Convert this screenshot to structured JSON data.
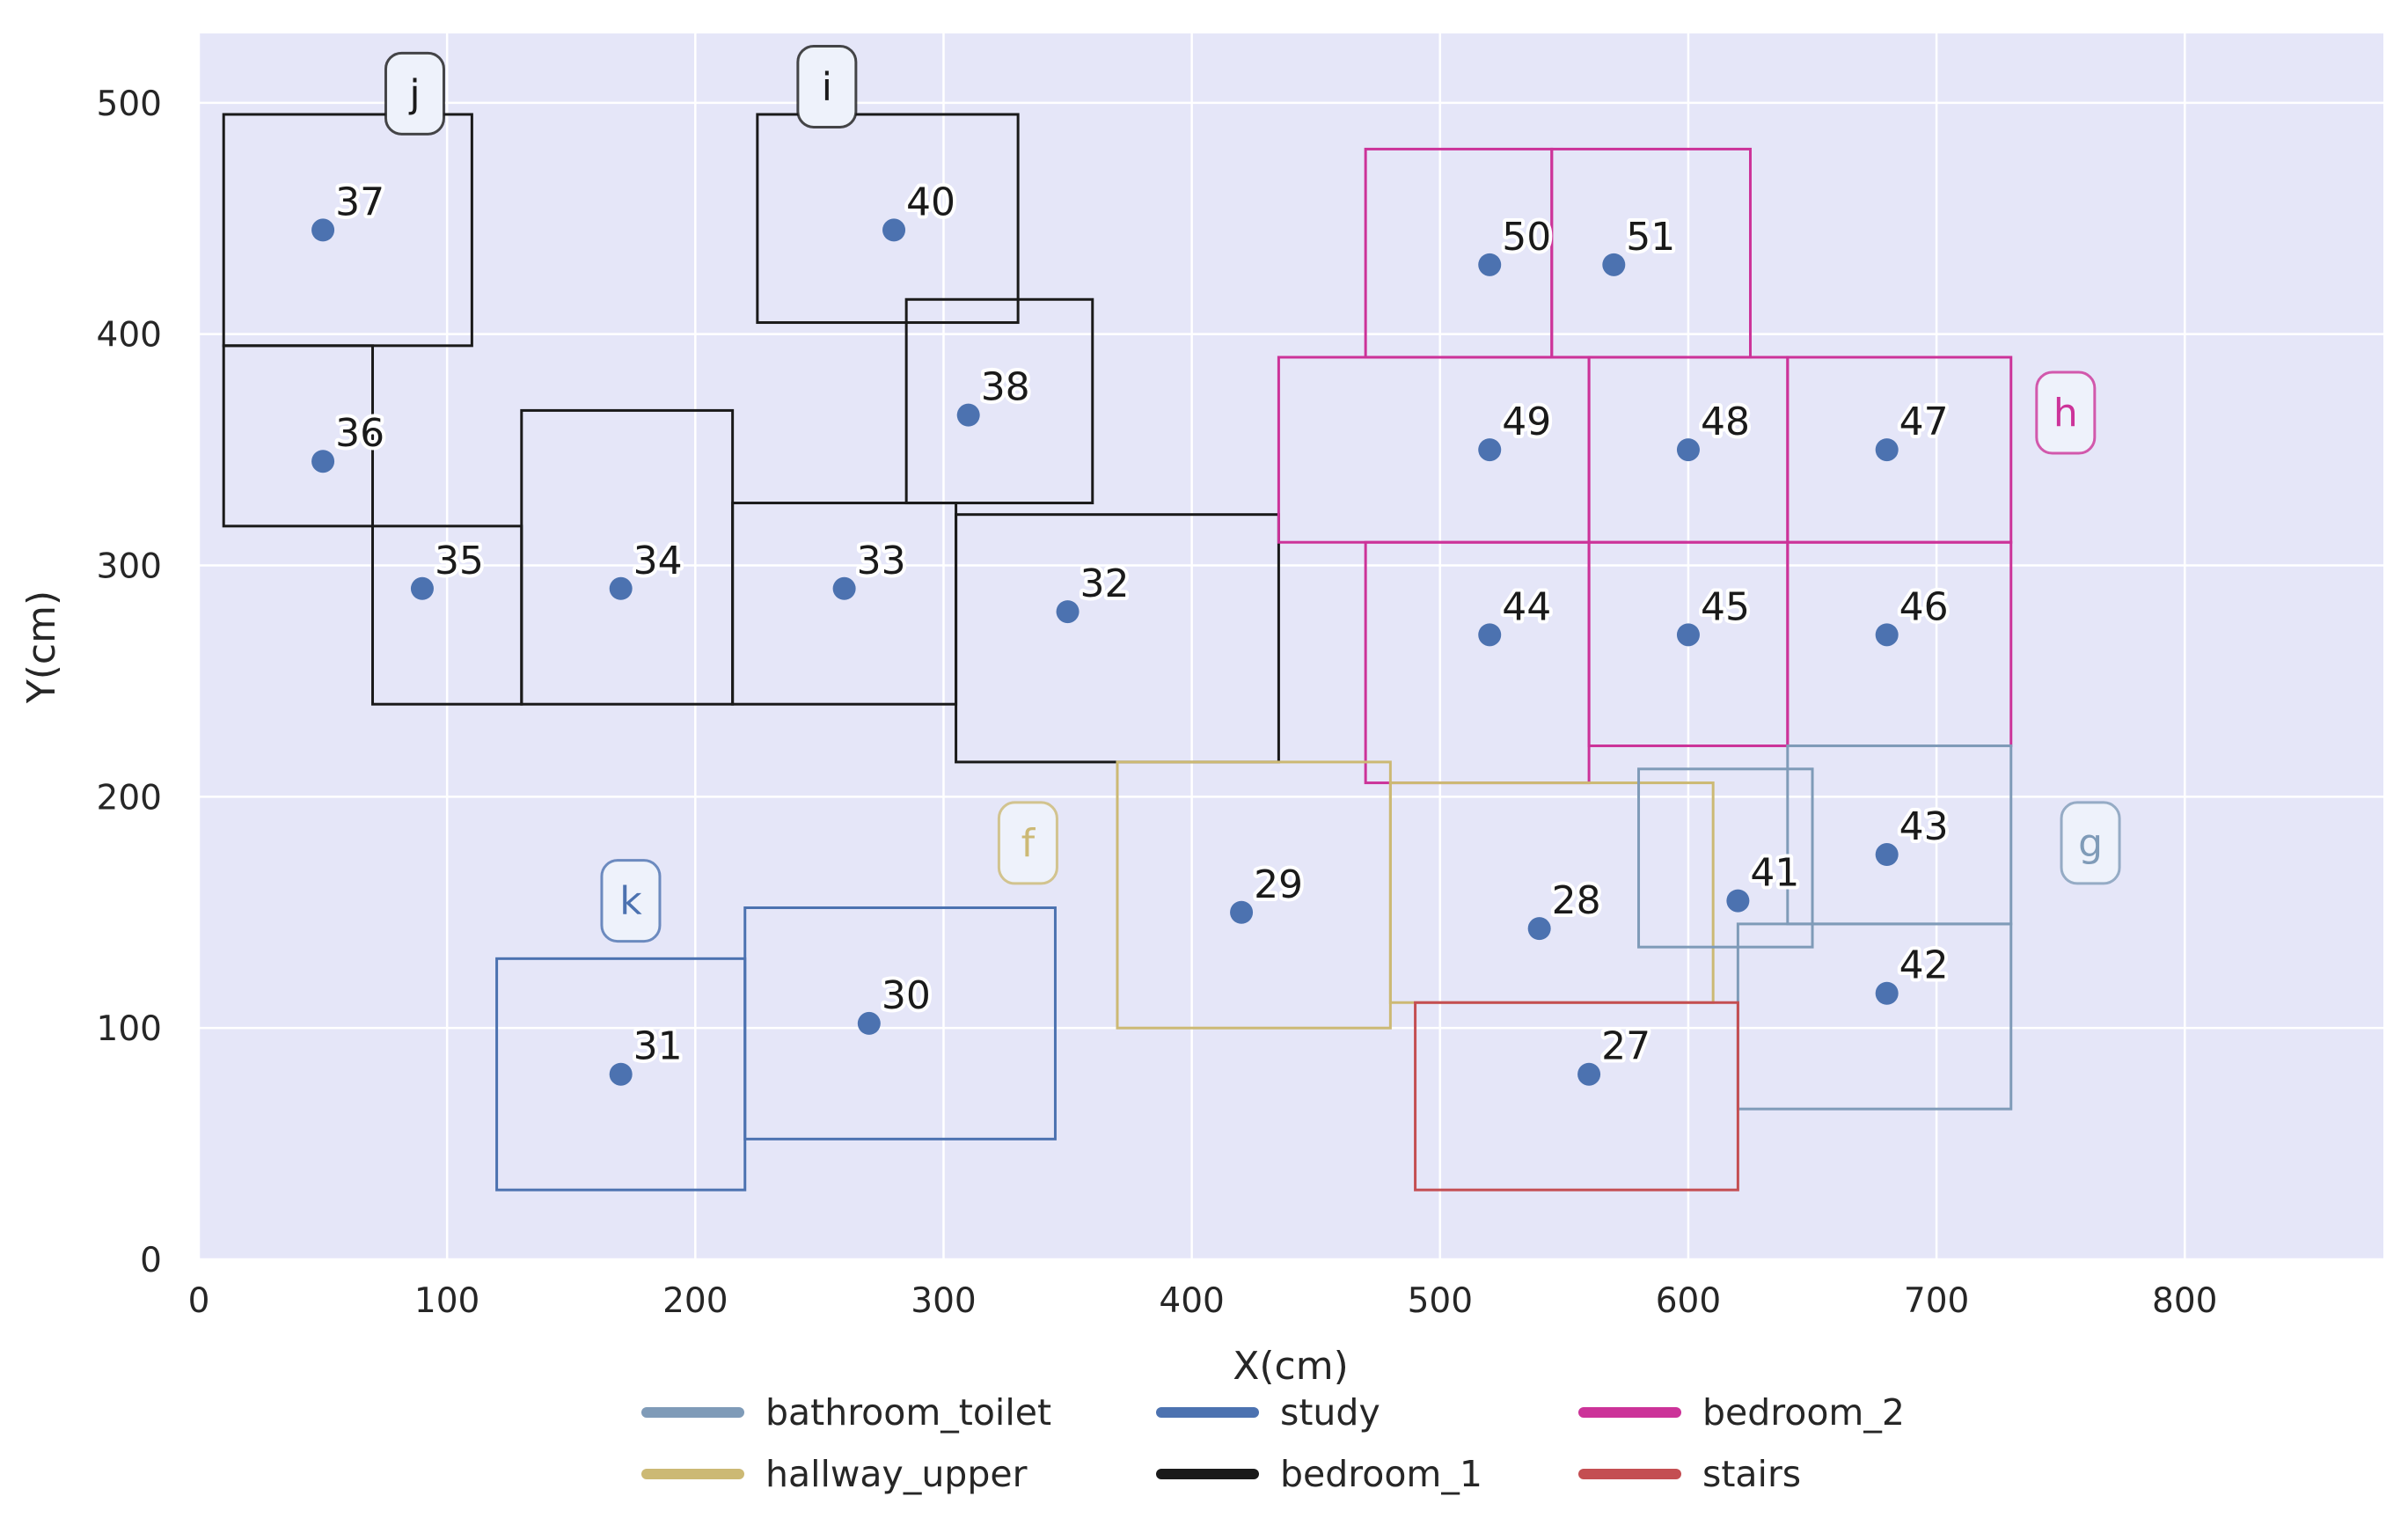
{
  "chart_data": {
    "type": "scatter",
    "xlabel": "X(cm)",
    "ylabel": "Y(cm)",
    "xlim": [
      0,
      880
    ],
    "ylim": [
      0,
      530
    ],
    "xticks": [
      0,
      100,
      200,
      300,
      400,
      500,
      600,
      700,
      800
    ],
    "yticks": [
      0,
      100,
      200,
      300,
      400,
      500
    ],
    "grid": true,
    "legend_position": "bottom-center",
    "background_color": "#e5e6f8",
    "point_color": "#4c72b0",
    "categories": [
      {
        "name": "bathroom_toilet",
        "color": "#7f9bb8"
      },
      {
        "name": "hallway_upper",
        "color": "#ccb974"
      },
      {
        "name": "study",
        "color": "#4c72b0"
      },
      {
        "name": "bedroom_1",
        "color": "#1a1a1a"
      },
      {
        "name": "bedroom_2",
        "color": "#cc3399"
      },
      {
        "name": "stairs",
        "color": "#c44e52"
      }
    ],
    "points": [
      {
        "id": "27",
        "x": 560,
        "y": 80
      },
      {
        "id": "28",
        "x": 540,
        "y": 143
      },
      {
        "id": "29",
        "x": 420,
        "y": 150
      },
      {
        "id": "30",
        "x": 270,
        "y": 102
      },
      {
        "id": "31",
        "x": 170,
        "y": 80
      },
      {
        "id": "32",
        "x": 350,
        "y": 280
      },
      {
        "id": "33",
        "x": 260,
        "y": 290
      },
      {
        "id": "34",
        "x": 170,
        "y": 290
      },
      {
        "id": "35",
        "x": 90,
        "y": 290
      },
      {
        "id": "36",
        "x": 50,
        "y": 345
      },
      {
        "id": "37",
        "x": 50,
        "y": 445
      },
      {
        "id": "38",
        "x": 310,
        "y": 365
      },
      {
        "id": "40",
        "x": 280,
        "y": 445
      },
      {
        "id": "41",
        "x": 620,
        "y": 155
      },
      {
        "id": "42",
        "x": 680,
        "y": 115
      },
      {
        "id": "43",
        "x": 680,
        "y": 175
      },
      {
        "id": "44",
        "x": 520,
        "y": 270
      },
      {
        "id": "45",
        "x": 600,
        "y": 270
      },
      {
        "id": "46",
        "x": 680,
        "y": 270
      },
      {
        "id": "47",
        "x": 680,
        "y": 350
      },
      {
        "id": "48",
        "x": 600,
        "y": 350
      },
      {
        "id": "49",
        "x": 520,
        "y": 350
      },
      {
        "id": "50",
        "x": 520,
        "y": 430
      },
      {
        "id": "51",
        "x": 570,
        "y": 430
      }
    ],
    "rects": [
      {
        "cat": "bedroom_1",
        "x0": 10,
        "y0": 395,
        "x1": 110,
        "y1": 495
      },
      {
        "cat": "bedroom_1",
        "x0": 10,
        "y0": 317,
        "x1": 70,
        "y1": 395
      },
      {
        "cat": "bedroom_1",
        "x0": 70,
        "y0": 240,
        "x1": 130,
        "y1": 317
      },
      {
        "cat": "bedroom_1",
        "x0": 130,
        "y0": 240,
        "x1": 215,
        "y1": 367
      },
      {
        "cat": "bedroom_1",
        "x0": 215,
        "y0": 240,
        "x1": 305,
        "y1": 327
      },
      {
        "cat": "bedroom_1",
        "x0": 305,
        "y0": 215,
        "x1": 435,
        "y1": 322
      },
      {
        "cat": "bedroom_1",
        "x0": 225,
        "y0": 405,
        "x1": 330,
        "y1": 495
      },
      {
        "cat": "bedroom_1",
        "x0": 285,
        "y0": 327,
        "x1": 360,
        "y1": 415
      },
      {
        "cat": "bedroom_2",
        "x0": 470,
        "y0": 390,
        "x1": 545,
        "y1": 480
      },
      {
        "cat": "bedroom_2",
        "x0": 545,
        "y0": 390,
        "x1": 625,
        "y1": 480
      },
      {
        "cat": "bedroom_2",
        "x0": 435,
        "y0": 310,
        "x1": 560,
        "y1": 390
      },
      {
        "cat": "bedroom_2",
        "x0": 560,
        "y0": 310,
        "x1": 640,
        "y1": 390
      },
      {
        "cat": "bedroom_2",
        "x0": 640,
        "y0": 310,
        "x1": 730,
        "y1": 390
      },
      {
        "cat": "bedroom_2",
        "x0": 470,
        "y0": 206,
        "x1": 560,
        "y1": 310
      },
      {
        "cat": "bedroom_2",
        "x0": 560,
        "y0": 222,
        "x1": 640,
        "y1": 310
      },
      {
        "cat": "bedroom_2",
        "x0": 640,
        "y0": 222,
        "x1": 730,
        "y1": 310
      },
      {
        "cat": "hallway_upper",
        "x0": 370,
        "y0": 100,
        "x1": 480,
        "y1": 215
      },
      {
        "cat": "hallway_upper",
        "x0": 480,
        "y0": 111,
        "x1": 610,
        "y1": 206
      },
      {
        "cat": "bathroom_toilet",
        "x0": 580,
        "y0": 135,
        "x1": 650,
        "y1": 212
      },
      {
        "cat": "bathroom_toilet",
        "x0": 640,
        "y0": 145,
        "x1": 730,
        "y1": 222
      },
      {
        "cat": "bathroom_toilet",
        "x0": 620,
        "y0": 65,
        "x1": 730,
        "y1": 145
      },
      {
        "cat": "stairs",
        "x0": 490,
        "y0": 30,
        "x1": 620,
        "y1": 111
      },
      {
        "cat": "study",
        "x0": 120,
        "y0": 30,
        "x1": 220,
        "y1": 130
      },
      {
        "cat": "study",
        "x0": 220,
        "y0": 52,
        "x1": 345,
        "y1": 152
      }
    ],
    "room_tags": [
      {
        "text": "j",
        "cat": "bedroom_1",
        "x": 87,
        "y": 504
      },
      {
        "text": "i",
        "cat": "bedroom_1",
        "x": 253,
        "y": 507
      },
      {
        "text": "h",
        "cat": "bedroom_2",
        "x": 752,
        "y": 366
      },
      {
        "text": "g",
        "cat": "bathroom_toilet",
        "x": 762,
        "y": 180
      },
      {
        "text": "f",
        "cat": "hallway_upper",
        "x": 334,
        "y": 180
      },
      {
        "text": "k",
        "cat": "study",
        "x": 174,
        "y": 155
      }
    ]
  }
}
